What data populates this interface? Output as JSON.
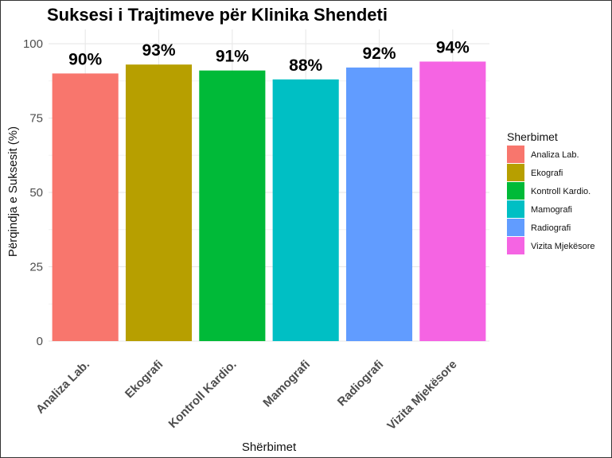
{
  "chart_data": {
    "type": "bar",
    "title": "Suksesi i Trajtimeve për Klinika Shendeti",
    "xlabel": "Shërbimet",
    "ylabel": "Përqindja e Suksesit (%)",
    "categories": [
      "Analiza Lab.",
      "Ekografi",
      "Kontroll Kardio.",
      "Mamografi",
      "Radiografi",
      "Vizita Mjekësore"
    ],
    "values": [
      90,
      93,
      91,
      88,
      92,
      94
    ],
    "data_labels": [
      "90%",
      "93%",
      "91%",
      "88%",
      "92%",
      "94%"
    ],
    "colors": [
      "#F8766D",
      "#B79F00",
      "#00BA38",
      "#00BFC4",
      "#619CFF",
      "#F564E3"
    ],
    "ylim": [
      0,
      100
    ],
    "yticks": [
      0,
      25,
      50,
      75,
      100
    ],
    "grid": true,
    "legend": {
      "title": "Sherbimet",
      "position": "right",
      "entries": [
        "Analiza Lab.",
        "Ekografi",
        "Kontroll Kardio.",
        "Mamografi",
        "Radiografi",
        "Vizita Mjekësore"
      ]
    }
  }
}
